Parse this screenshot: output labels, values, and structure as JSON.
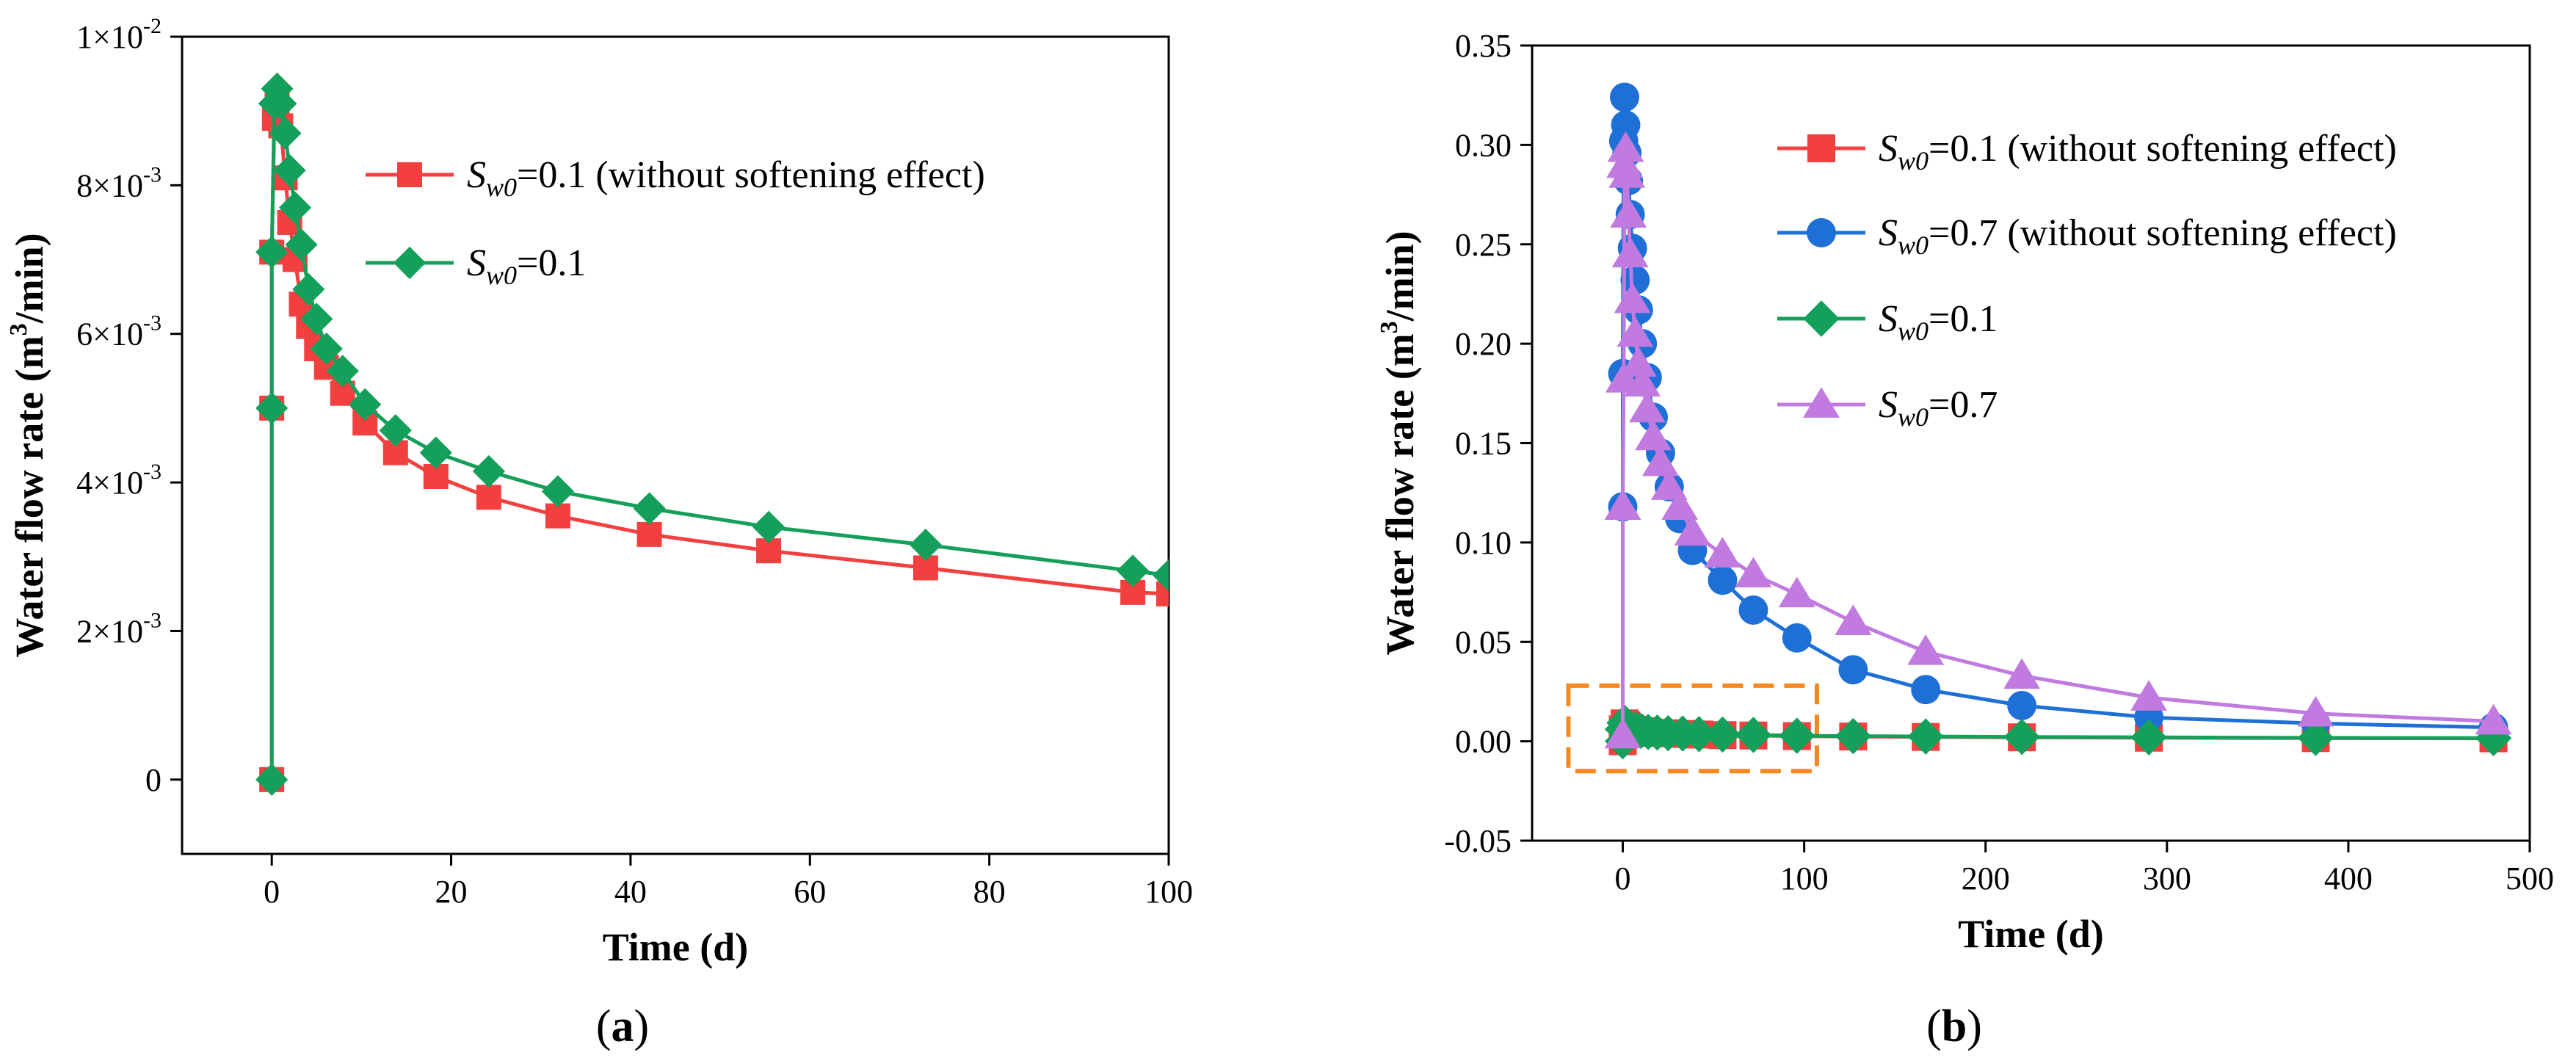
{
  "chart_data": [
    {
      "type": "line",
      "panel_label": "(a)",
      "xlabel": "Time (d)",
      "ylabel": "Water flow rate (m³/min)",
      "ylabel_parts": {
        "pre": "Water flow rate (m",
        "sup": "3",
        "post": "/min)"
      },
      "xlim": [
        -10,
        100
      ],
      "ylim": [
        -0.001,
        0.01
      ],
      "x_ticks": [
        0,
        20,
        40,
        60,
        80,
        100
      ],
      "x_tick_labels": [
        "0",
        "20",
        "40",
        "60",
        "80",
        "100"
      ],
      "y_ticks": [
        0,
        0.002,
        0.004,
        0.006,
        0.008,
        0.01
      ],
      "y_tick_labels": [
        {
          "base": "0",
          "exp": ""
        },
        {
          "base": "2×10",
          "exp": "-3"
        },
        {
          "base": "4×10",
          "exp": "-3"
        },
        {
          "base": "6×10",
          "exp": "-3"
        },
        {
          "base": "8×10",
          "exp": "-3"
        },
        {
          "base": "1×10",
          "exp": "-2"
        }
      ],
      "legend_position": "top-right",
      "series": [
        {
          "name": "Sw0=0.1 (without softening effect)",
          "legend": {
            "sym": "S",
            "sub": "w0",
            "rest": "=0.1 (without softening effect)"
          },
          "color": "#f24040",
          "marker": "square",
          "x": [
            0,
            0,
            0,
            0.3,
            0.6,
            1.0,
            1.5,
            2.0,
            2.6,
            3.3,
            4.1,
            5.0,
            6.1,
            7.9,
            10.4,
            13.8,
            18.3,
            24.2,
            31.9,
            42.1,
            55.4,
            72.9,
            96.0,
            100
          ],
          "y": [
            0.0,
            0.005,
            0.0071,
            0.0089,
            0.0091,
            0.0088,
            0.0081,
            0.0075,
            0.007,
            0.0064,
            0.0061,
            0.0058,
            0.00555,
            0.0052,
            0.0048,
            0.0044,
            0.00408,
            0.0038,
            0.00355,
            0.0033,
            0.00308,
            0.00285,
            0.00252,
            0.0025
          ]
        },
        {
          "name": "Sw0=0.1",
          "legend": {
            "sym": "S",
            "sub": "w0",
            "rest": "=0.1"
          },
          "color": "#14a05a",
          "marker": "diamond",
          "x": [
            0,
            0,
            0,
            0.3,
            0.6,
            1.0,
            1.5,
            2.0,
            2.6,
            3.3,
            4.1,
            5.0,
            6.1,
            7.9,
            10.4,
            13.8,
            18.3,
            24.2,
            31.9,
            42.1,
            55.4,
            72.9,
            96.0,
            100
          ],
          "y": [
            0.0,
            0.005,
            0.0071,
            0.0091,
            0.0093,
            0.0091,
            0.0087,
            0.0082,
            0.0077,
            0.0072,
            0.0066,
            0.0062,
            0.0058,
            0.0055,
            0.00505,
            0.0047,
            0.0044,
            0.00415,
            0.00388,
            0.00365,
            0.0034,
            0.00316,
            0.00281,
            0.00275
          ]
        }
      ]
    },
    {
      "type": "line",
      "panel_label": "(b)",
      "xlabel": "Time (d)",
      "ylabel": "Water flow rate (m³/min)",
      "ylabel_parts": {
        "pre": "Water flow rate (m",
        "sup": "3",
        "post": "/min)"
      },
      "xlim": [
        -50,
        500
      ],
      "ylim": [
        -0.05,
        0.35
      ],
      "x_ticks": [
        0,
        100,
        200,
        300,
        400,
        500
      ],
      "x_tick_labels": [
        "0",
        "100",
        "200",
        "300",
        "400",
        "500"
      ],
      "y_ticks": [
        -0.05,
        0,
        0.05,
        0.1,
        0.15,
        0.2,
        0.25,
        0.3,
        0.35
      ],
      "y_tick_labels": [
        "-0.05",
        "0.00",
        "0.05",
        "0.10",
        "0.15",
        "0.20",
        "0.25",
        "0.30",
        "0.35"
      ],
      "legend_position": "top-right",
      "annotation": {
        "type": "dashed-box",
        "color": "#f5881f",
        "x_range": [
          -30,
          107
        ],
        "y_range": [
          -0.015,
          0.028
        ]
      },
      "series": [
        {
          "name": "Sw0=0.1 (without softening effect)",
          "legend": {
            "sym": "S",
            "sub": "w0",
            "rest": "=0.1 (without softening effect)"
          },
          "color": "#f24040",
          "marker": "square",
          "x": [
            0,
            0,
            1,
            2,
            4,
            7,
            10,
            14,
            19,
            25,
            33,
            42,
            55,
            72,
            96,
            127,
            167,
            220,
            290,
            382,
            480
          ],
          "y": [
            0.0,
            0.006,
            0.009,
            0.008,
            0.0065,
            0.0058,
            0.005,
            0.0045,
            0.0042,
            0.004,
            0.0037,
            0.0034,
            0.0031,
            0.0029,
            0.0026,
            0.0024,
            0.0022,
            0.002,
            0.0018,
            0.0016,
            0.0015
          ]
        },
        {
          "name": "Sw0=0.7 (without softening effect)",
          "legend": {
            "sym": "S",
            "sub": "w0",
            "rest": "=0.7 (without softening effect)"
          },
          "color": "#1e6fd6",
          "marker": "circle",
          "x": [
            0,
            0,
            0.5,
            1.0,
            1.6,
            2.3,
            3.1,
            4.1,
            5.3,
            6.8,
            8.6,
            10.8,
            13.5,
            16.8,
            20.8,
            25.6,
            31.4,
            38.4,
            55,
            72,
            96,
            127,
            167,
            220,
            290,
            382,
            480
          ],
          "y": [
            0.118,
            0.185,
            0.302,
            0.324,
            0.31,
            0.296,
            0.282,
            0.265,
            0.248,
            0.232,
            0.217,
            0.2,
            0.183,
            0.163,
            0.145,
            0.128,
            0.112,
            0.096,
            0.081,
            0.066,
            0.052,
            0.036,
            0.026,
            0.018,
            0.012,
            0.009,
            0.007
          ]
        },
        {
          "name": "Sw0=0.1",
          "legend": {
            "sym": "S",
            "sub": "w0",
            "rest": "=0.1"
          },
          "color": "#14a05a",
          "marker": "diamond",
          "x": [
            0,
            0,
            1,
            2,
            4,
            7,
            10,
            14,
            19,
            25,
            33,
            42,
            55,
            72,
            96,
            127,
            167,
            220,
            290,
            382,
            480
          ],
          "y": [
            0.0,
            0.006,
            0.0093,
            0.0082,
            0.0066,
            0.006,
            0.0052,
            0.0047,
            0.0044,
            0.0041,
            0.0039,
            0.0036,
            0.0034,
            0.0032,
            0.0028,
            0.0026,
            0.0024,
            0.0022,
            0.002,
            0.0017,
            0.0016
          ]
        },
        {
          "name": "Sw0=0.7",
          "legend": {
            "sym": "S",
            "sub": "w0",
            "rest": "=0.7"
          },
          "color": "#c07ae0",
          "marker": "triangle",
          "x": [
            0,
            0,
            0.5,
            1.0,
            1.6,
            2.3,
            3.1,
            4.1,
            5.3,
            6.8,
            8.6,
            10.8,
            13.5,
            16.8,
            20.8,
            25.6,
            31.4,
            38.4,
            55,
            72,
            96,
            127,
            167,
            220,
            290,
            382,
            480
          ],
          "y": [
            0.003,
            0.118,
            0.182,
            0.29,
            0.298,
            0.285,
            0.265,
            0.245,
            0.222,
            0.205,
            0.19,
            0.18,
            0.167,
            0.153,
            0.14,
            0.128,
            0.118,
            0.105,
            0.094,
            0.084,
            0.074,
            0.06,
            0.045,
            0.033,
            0.022,
            0.014,
            0.01
          ]
        }
      ]
    }
  ]
}
